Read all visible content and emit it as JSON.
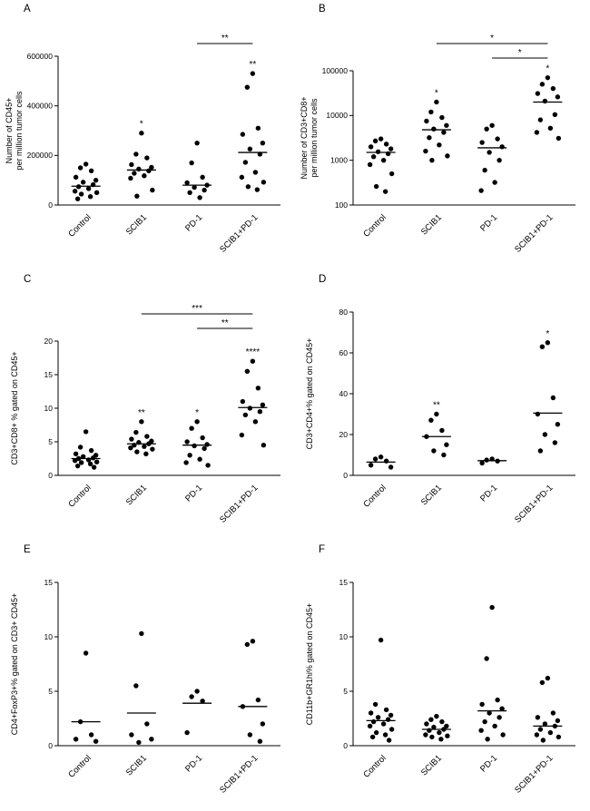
{
  "figure": {
    "panel_letters": [
      "A",
      "B",
      "C",
      "D",
      "E",
      "F"
    ]
  },
  "colors": {
    "points": "#000000",
    "axis": "#000000",
    "background": "#ffffff"
  },
  "chart_data": [
    {
      "panel": "A",
      "type": "scatter",
      "yscale": "linear",
      "ylim": [
        0,
        600000
      ],
      "yticks": [
        0,
        200000,
        400000,
        600000
      ],
      "ytick_labels": [
        "0",
        "200000",
        "400000",
        "600000"
      ],
      "ylabel_lines": [
        "Number of CD45+",
        "per million tumor cells"
      ],
      "categories": [
        "Control",
        "SCIB1",
        "PD-1",
        "SCIB1+PD-1"
      ],
      "groups": [
        {
          "category": "Control",
          "values": [
            165000,
            150000,
            138000,
            112000,
            100000,
            92000,
            82000,
            74000,
            66000,
            56000,
            50000,
            44000,
            34000,
            25000
          ],
          "median": 76000,
          "sig": ""
        },
        {
          "category": "SCIB1",
          "values": [
            290000,
            205000,
            190000,
            163000,
            152000,
            145000,
            138000,
            128000,
            118000,
            108000,
            60000,
            36000
          ],
          "median": 141000,
          "sig": "*"
        },
        {
          "category": "PD-1",
          "values": [
            250000,
            170000,
            112000,
            90000,
            80000,
            71000,
            60000,
            50000,
            30000
          ],
          "median": 80000,
          "sig": ""
        },
        {
          "category": "SCIB1+PD-1",
          "values": [
            530000,
            475000,
            310000,
            285000,
            250000,
            226000,
            205000,
            172000,
            132000,
            112000,
            92000,
            74000,
            62000
          ],
          "median": 212000,
          "sig": "**"
        }
      ],
      "brackets": [
        {
          "from": 2,
          "to": 3,
          "label": "**",
          "level": 0
        }
      ]
    },
    {
      "panel": "B",
      "type": "scatter",
      "yscale": "log",
      "ylim": [
        100,
        100000
      ],
      "yticks": [
        100,
        1000,
        10000,
        100000
      ],
      "ytick_labels": [
        "100",
        "1000",
        "10000",
        "100000"
      ],
      "ylabel_lines": [
        "Number of CD3+CD8+",
        "per million tumor cells"
      ],
      "categories": [
        "Control",
        "SCIB1",
        "PD-1",
        "SCIB1+PD-1"
      ],
      "groups": [
        {
          "category": "Control",
          "values": [
            3000,
            2700,
            2300,
            2000,
            1800,
            1550,
            1400,
            1200,
            1000,
            800,
            500,
            260,
            200
          ],
          "median": 1500,
          "sig": ""
        },
        {
          "category": "SCIB1",
          "values": [
            20000,
            12000,
            9000,
            7500,
            6000,
            5000,
            4200,
            3200,
            2200,
            1600,
            1250,
            1000
          ],
          "median": 4800,
          "sig": "*"
        },
        {
          "category": "PD-1",
          "values": [
            6000,
            5000,
            3000,
            2500,
            2000,
            1500,
            1000,
            600,
            320,
            210
          ],
          "median": 1900,
          "sig": ""
        },
        {
          "category": "SCIB1+PD-1",
          "values": [
            70000,
            50000,
            40000,
            31000,
            26000,
            21000,
            10500,
            8000,
            5200,
            4200,
            3100
          ],
          "median": 20000,
          "sig": "*"
        }
      ],
      "brackets": [
        {
          "from": 1,
          "to": 3,
          "label": "*",
          "level": 1
        },
        {
          "from": 2,
          "to": 3,
          "label": "*",
          "level": 0
        }
      ]
    },
    {
      "panel": "C",
      "type": "scatter",
      "yscale": "linear",
      "ylim": [
        0,
        20
      ],
      "yticks": [
        0,
        5,
        10,
        15,
        20
      ],
      "ytick_labels": [
        "0",
        "5",
        "10",
        "15",
        "20"
      ],
      "ylabel_lines": [
        "CD3+CD8+ % gated on CD45+"
      ],
      "categories": [
        "Control",
        "SCIB1",
        "PD-1",
        "SCIB1+PD-1"
      ],
      "groups": [
        {
          "category": "Control",
          "values": [
            6.5,
            4.2,
            3.7,
            3.2,
            3.0,
            2.8,
            2.6,
            2.5,
            2.3,
            2.2,
            2.0,
            1.9,
            1.7,
            1.4,
            1.2
          ],
          "median": 2.5,
          "sig": ""
        },
        {
          "category": "SCIB1",
          "values": [
            8.0,
            6.4,
            5.8,
            5.4,
            5.1,
            4.9,
            4.7,
            4.5,
            4.3,
            4.1,
            3.9,
            3.5,
            3.2
          ],
          "median": 4.7,
          "sig": "**"
        },
        {
          "category": "PD-1",
          "values": [
            8.0,
            7.0,
            5.6,
            5.0,
            4.6,
            4.4,
            4.0,
            3.0,
            2.4,
            1.9,
            1.5
          ],
          "median": 4.5,
          "sig": "*"
        },
        {
          "category": "SCIB1+PD-1",
          "values": [
            17.0,
            15.5,
            13.0,
            11.0,
            10.5,
            10.0,
            9.5,
            9.0,
            8.0,
            6.0,
            4.5
          ],
          "median": 10.1,
          "sig": "****"
        }
      ],
      "brackets": [
        {
          "from": 1,
          "to": 3,
          "label": "***",
          "level": 1
        },
        {
          "from": 2,
          "to": 3,
          "label": "**",
          "level": 0
        }
      ]
    },
    {
      "panel": "D",
      "type": "scatter",
      "yscale": "linear",
      "ylim": [
        0,
        80
      ],
      "yticks": [
        0,
        20,
        40,
        60,
        80
      ],
      "ytick_labels": [
        "0",
        "20",
        "40",
        "60",
        "80"
      ],
      "ylabel_lines": [
        "CD3+CD4+% gated on CD45+"
      ],
      "categories": [
        "Control",
        "SCIB1",
        "PD-1",
        "SCIB1+PD-1"
      ],
      "groups": [
        {
          "category": "Control",
          "values": [
            9,
            8,
            7,
            5,
            4
          ],
          "median": 6.5,
          "sig": ""
        },
        {
          "category": "SCIB1",
          "values": [
            30,
            27,
            22,
            19,
            15,
            12,
            10
          ],
          "median": 19,
          "sig": "**"
        },
        {
          "category": "PD-1",
          "values": [
            8,
            7.5,
            7,
            6
          ],
          "median": 7.2,
          "sig": ""
        },
        {
          "category": "SCIB1+PD-1",
          "values": [
            65,
            63,
            38,
            30,
            25,
            20,
            16,
            12
          ],
          "median": 30.5,
          "sig": "*"
        }
      ],
      "brackets": []
    },
    {
      "panel": "E",
      "type": "scatter",
      "yscale": "linear",
      "ylim": [
        0,
        15
      ],
      "yticks": [
        0,
        5,
        10,
        15
      ],
      "ytick_labels": [
        "0",
        "5",
        "10",
        "15"
      ],
      "ylabel_lines": [
        "CD4+FoxP3+% gated on CD3+ CD45+"
      ],
      "categories": [
        "Control",
        "SCIB1",
        "PD-1",
        "SCIB1+PD-1"
      ],
      "groups": [
        {
          "category": "Control",
          "values": [
            8.5,
            2.2,
            1.0,
            0.6,
            0.4
          ],
          "median": 2.2,
          "sig": ""
        },
        {
          "category": "SCIB1",
          "values": [
            10.3,
            5.5,
            2.0,
            1.0,
            0.6,
            0.3
          ],
          "median": 3.0,
          "sig": ""
        },
        {
          "category": "PD-1",
          "values": [
            5.0,
            4.5,
            4.1,
            1.2
          ],
          "median": 3.9,
          "sig": ""
        },
        {
          "category": "SCIB1+PD-1",
          "values": [
            9.6,
            9.3,
            4.2,
            3.6,
            2.0,
            1.0,
            0.4
          ],
          "median": 3.6,
          "sig": ""
        }
      ],
      "brackets": []
    },
    {
      "panel": "F",
      "type": "scatter",
      "yscale": "linear",
      "ylim": [
        0,
        15
      ],
      "yticks": [
        0,
        5,
        10,
        15
      ],
      "ytick_labels": [
        "0",
        "5",
        "10",
        "15"
      ],
      "ylabel_lines": [
        "CD11b+GR1hi% gated on CD45+"
      ],
      "categories": [
        "Control",
        "SCIB1",
        "PD-1",
        "SCIB1+PD-1"
      ],
      "groups": [
        {
          "category": "Control",
          "values": [
            9.7,
            3.8,
            3.3,
            3.0,
            2.8,
            2.6,
            2.4,
            2.2,
            2.0,
            1.8,
            1.5,
            1.2,
            1.0,
            0.8,
            0.5
          ],
          "median": 2.3,
          "sig": ""
        },
        {
          "category": "SCIB1",
          "values": [
            2.7,
            2.4,
            2.2,
            2.0,
            1.8,
            1.7,
            1.5,
            1.4,
            1.2,
            1.0,
            0.9,
            0.8,
            0.6
          ],
          "median": 1.5,
          "sig": ""
        },
        {
          "category": "PD-1",
          "values": [
            12.7,
            8.0,
            4.2,
            3.8,
            3.4,
            3.0,
            2.6,
            2.2,
            1.8,
            1.4,
            1.0,
            0.6
          ],
          "median": 3.2,
          "sig": ""
        },
        {
          "category": "SCIB1+PD-1",
          "values": [
            6.2,
            5.8,
            3.0,
            2.6,
            2.3,
            2.0,
            1.8,
            1.5,
            1.2,
            1.0,
            0.8,
            0.5
          ],
          "median": 1.8,
          "sig": ""
        }
      ],
      "brackets": []
    }
  ]
}
